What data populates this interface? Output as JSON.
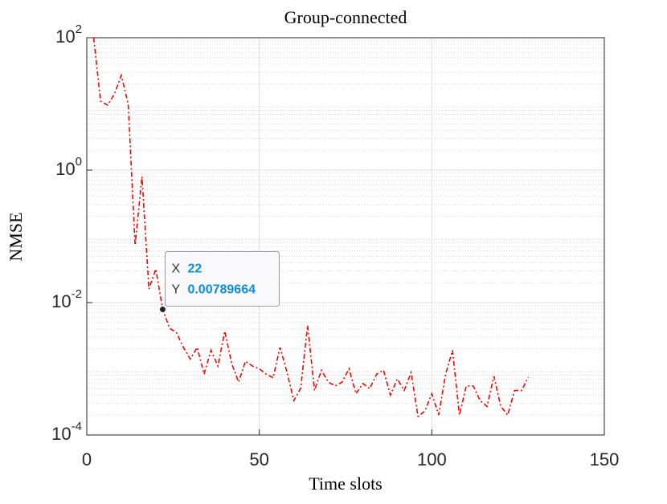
{
  "chart_data": {
    "type": "line",
    "title": "Group-connected",
    "x_label": "Time slots",
    "y_label": "NMSE",
    "log_y": true,
    "grid": true,
    "minor_grid": true,
    "x": [
      2,
      4,
      6,
      8,
      10,
      12,
      14,
      16,
      18,
      20,
      22,
      24,
      26,
      28,
      30,
      32,
      34,
      36,
      38,
      40,
      42,
      44,
      46,
      48,
      50,
      52,
      54,
      56,
      58,
      60,
      62,
      64,
      66,
      68,
      70,
      72,
      74,
      76,
      78,
      80,
      82,
      84,
      86,
      88,
      90,
      92,
      94,
      96,
      98,
      100,
      102,
      104,
      106,
      108,
      110,
      112,
      114,
      116,
      118,
      120,
      122,
      124,
      126,
      128
    ],
    "series": [
      {
        "color": "#ff0000",
        "values": [
          100,
          11,
          9.6,
          14,
          27,
          10,
          0.074,
          0.8,
          0.016,
          0.032,
          0.00789664,
          0.0041,
          0.0035,
          0.0021,
          0.0014,
          0.0021,
          0.00083,
          0.0019,
          0.0011,
          0.0037,
          0.0012,
          0.00063,
          0.0013,
          0.0011,
          0.001,
          0.00083,
          0.00073,
          0.0021,
          0.0009,
          0.00033,
          0.00051,
          0.0045,
          0.00047,
          0.00095,
          0.00063,
          0.00055,
          0.00063,
          0.001,
          0.00042,
          0.0006,
          0.0005,
          0.00083,
          0.00095,
          0.0004,
          0.0007,
          0.00047,
          0.00088,
          0.00019,
          0.00023,
          0.00042,
          0.0002,
          0.00083,
          0.0019,
          0.0002,
          0.00055,
          0.00055,
          0.00033,
          0.00027,
          0.00077,
          0.00027,
          0.0002,
          0.00047,
          0.00047,
          0.00075
        ]
      }
    ],
    "xlim": [
      0,
      150
    ],
    "xticks": [
      0,
      50,
      100,
      150
    ],
    "ylim": [
      0.0001,
      100
    ],
    "yticks": [
      {
        "value": 0.0001,
        "label": "10",
        "exponent": "-4"
      },
      {
        "value": 0.01,
        "label": "10",
        "exponent": "-2"
      },
      {
        "value": 1,
        "label": "10",
        "exponent": "0"
      },
      {
        "value": 100,
        "label": "10",
        "exponent": "2"
      }
    ],
    "datatip": {
      "x_name": "X",
      "x": 22,
      "y_name": "Y",
      "y": 0.00789664
    }
  }
}
